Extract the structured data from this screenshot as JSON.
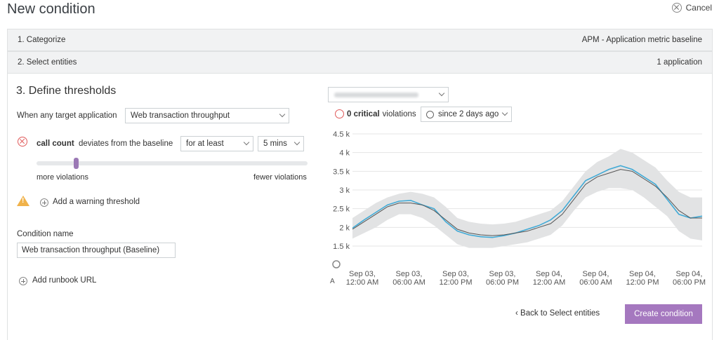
{
  "header": {
    "title": "New condition",
    "cancel_label": "Cancel"
  },
  "steps": [
    {
      "label": "1. Categorize",
      "value": "APM - Application metric baseline"
    },
    {
      "label": "2. Select entities",
      "value": "1 application"
    }
  ],
  "thresholds": {
    "heading": "3. Define thresholds",
    "target_label": "When any target application",
    "metric_select": "Web transaction throughput",
    "rule_metric": "call count",
    "rule_text": "deviates from the baseline",
    "duration_mode": "for at least",
    "duration": "5 mins",
    "slider_left": "more violations",
    "slider_right": "fewer violations",
    "slider_level": 0.14,
    "add_warning": "Add a warning threshold",
    "condition_name_label": "Condition name",
    "condition_name_value": "Web transaction throughput (Baseline)",
    "add_runbook": "Add runbook URL"
  },
  "preview": {
    "violations_count": "0 critical",
    "violations_suffix": "violations",
    "since": "since 2 days ago"
  },
  "chart_data": {
    "type": "line",
    "y_ticks": [
      "4.5 k",
      "4 k",
      "3.5 k",
      "3 k",
      "2.5 k",
      "2 k",
      "1.5 k"
    ],
    "ylim": [
      1500,
      4500
    ],
    "x_ticks": [
      [
        "Sep 03,",
        "12:00 AM"
      ],
      [
        "Sep 03,",
        "06:00 AM"
      ],
      [
        "Sep 03,",
        "12:00 PM"
      ],
      [
        "Sep 03,",
        "06:00 PM"
      ],
      [
        "Sep 04,",
        "12:00 AM"
      ],
      [
        "Sep 04,",
        "06:00 AM"
      ],
      [
        "Sep 04,",
        "12:00 PM"
      ],
      [
        "Sep 04,",
        "06:00 PM"
      ]
    ],
    "left_cut_label": "A",
    "grid": true,
    "series": [
      {
        "values": [
          1950,
          2150,
          2350,
          2550,
          2650,
          2650,
          2600,
          2450,
          2200,
          1950,
          1850,
          1800,
          1780,
          1800,
          1850,
          1900,
          2000,
          2100,
          2350,
          2750,
          3150,
          3350,
          3450,
          3550,
          3500,
          3300,
          3100,
          2800,
          2450,
          2250,
          2250
        ]
      },
      {
        "values": [
          1980,
          2200,
          2400,
          2600,
          2700,
          2720,
          2600,
          2500,
          2150,
          1900,
          1800,
          1750,
          1730,
          1780,
          1850,
          1950,
          2050,
          2200,
          2450,
          2850,
          3250,
          3400,
          3550,
          3650,
          3550,
          3350,
          3150,
          2750,
          2350,
          2250,
          2300
        ]
      }
    ],
    "band_upper": [
      2250,
      2450,
      2650,
      2800,
      2900,
      2950,
      2900,
      2800,
      2550,
      2250,
      2150,
      2100,
      2080,
      2100,
      2150,
      2250,
      2350,
      2450,
      2700,
      3100,
      3500,
      3750,
      3900,
      4100,
      4000,
      3800,
      3600,
      3250,
      2950,
      2800,
      2800
    ],
    "band_lower": [
      1700,
      1850,
      2000,
      2200,
      2350,
      2350,
      2250,
      2050,
      1800,
      1550,
      1450,
      1450,
      1450,
      1500,
      1550,
      1600,
      1700,
      1800,
      2050,
      2450,
      2800,
      2950,
      3050,
      3050,
      3000,
      2800,
      2550,
      2300,
      1900,
      1700,
      1650
    ],
    "colors": {
      "band": "#e2e3e4",
      "baseline": "#555555",
      "actual": "#41aad6"
    }
  },
  "footer": {
    "back_label": "Back to Select entities",
    "create_label": "Create condition"
  }
}
